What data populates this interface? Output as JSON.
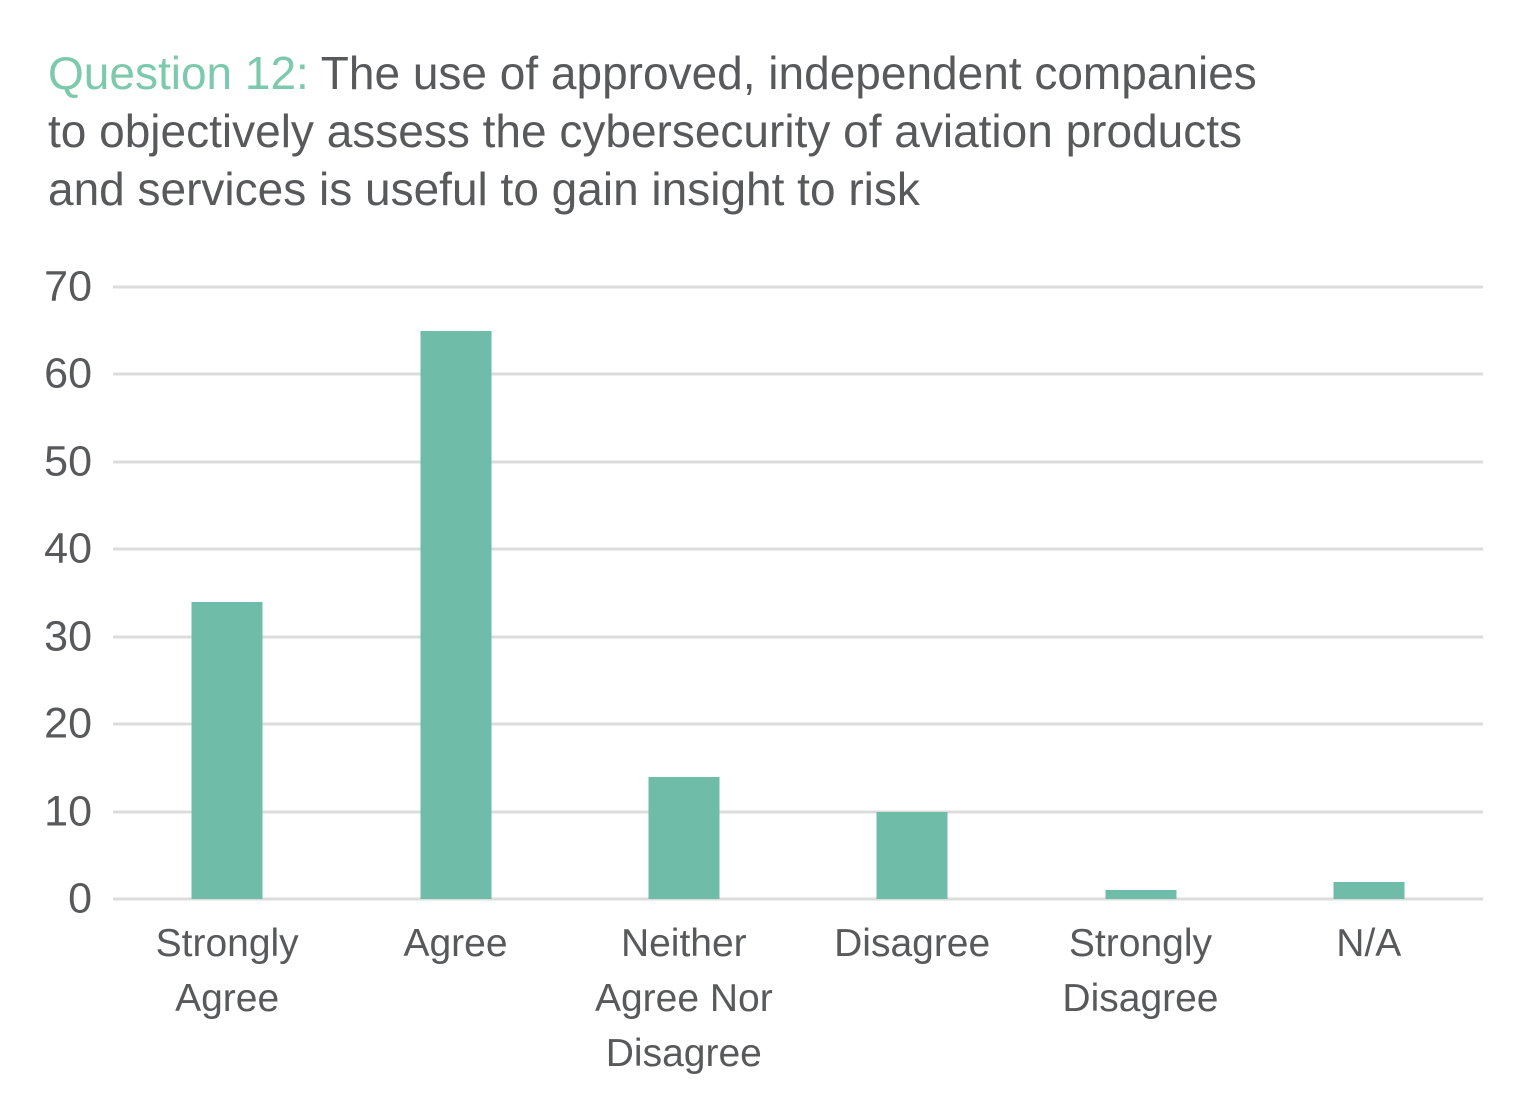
{
  "title": {
    "prefix": "Question 12:",
    "line1_rest": " The use of approved, independent companies",
    "line2": "to objectively assess the cybersecurity of aviation products",
    "line3": "and services is useful to gain insight to risk"
  },
  "colors": {
    "bar": "#6fbda8",
    "title_prefix": "#7cc9ae",
    "text": "#58595b",
    "gridline": "#dcdcdc",
    "background": "#ffffff"
  },
  "chart_data": {
    "type": "bar",
    "title": "Question 12: The use of approved, independent companies to objectively assess the cybersecurity of aviation products and services is useful to gain insight to risk",
    "categories": [
      "Strongly Agree",
      "Agree",
      "Neither Agree Nor Disagree",
      "Disagree",
      "Strongly Disagree",
      "N/A"
    ],
    "values": [
      34,
      65,
      14,
      10,
      1,
      2
    ],
    "xlabel": "",
    "ylabel": "",
    "ylim": [
      0,
      70
    ],
    "yticks": [
      0,
      10,
      20,
      30,
      40,
      50,
      60,
      70
    ],
    "grid": true,
    "legend": false,
    "legend_position": "none"
  }
}
